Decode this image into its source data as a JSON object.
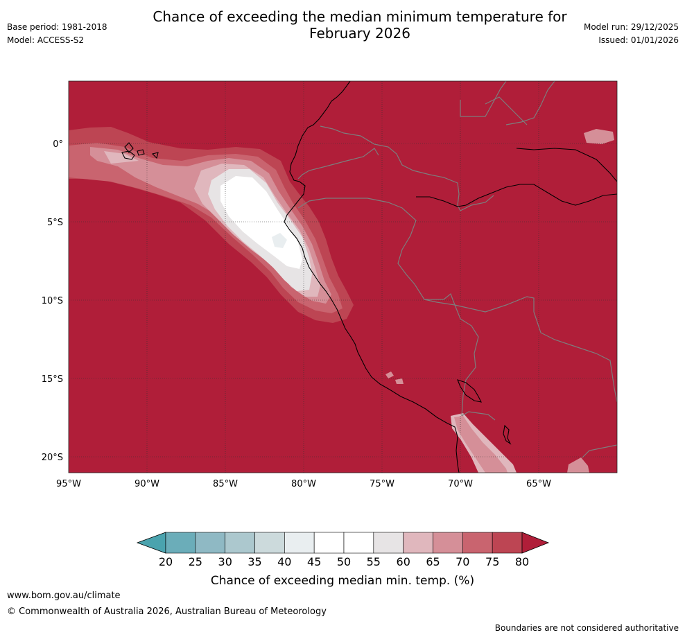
{
  "header": {
    "title_line1": "Chance of exceeding the median minimum temperature for",
    "title_line2": "February 2026",
    "base_period": "Base period: 1981-2018",
    "model": "Model: ACCESS-S2",
    "model_run": "Model run: 29/12/2025",
    "issued": "Issued: 01/01/2026"
  },
  "map": {
    "lon_range": [
      -95,
      -60
    ],
    "lat_range": [
      -21,
      4
    ],
    "x_ticks": [
      "95°W",
      "90°W",
      "85°W",
      "80°W",
      "75°W",
      "70°W",
      "65°W"
    ],
    "y_ticks": [
      "0°",
      "5°S",
      "10°S",
      "15°S",
      "20°S"
    ]
  },
  "colorbar": {
    "title": "Chance of exceeding median min. temp. (%)",
    "ticks": [
      "20",
      "25",
      "30",
      "35",
      "40",
      "45",
      "50",
      "55",
      "60",
      "65",
      "70",
      "75",
      "80"
    ],
    "colors": [
      "#4aa3ae",
      "#6badb9",
      "#8fb9c4",
      "#acc8ce",
      "#ccdadc",
      "#e9eef0",
      "#ffffff",
      "#ffffff",
      "#e7e4e5",
      "#e0b7bd",
      "#d58f98",
      "#c9646f",
      "#bd4553",
      "#b01e39"
    ]
  },
  "footer": {
    "url": "www.bom.gov.au/climate",
    "copyright": "© Commonwealth of Australia 2026, Australian Bureau of Meteorology",
    "boundary_note": "Boundaries are not considered authoritative"
  }
}
